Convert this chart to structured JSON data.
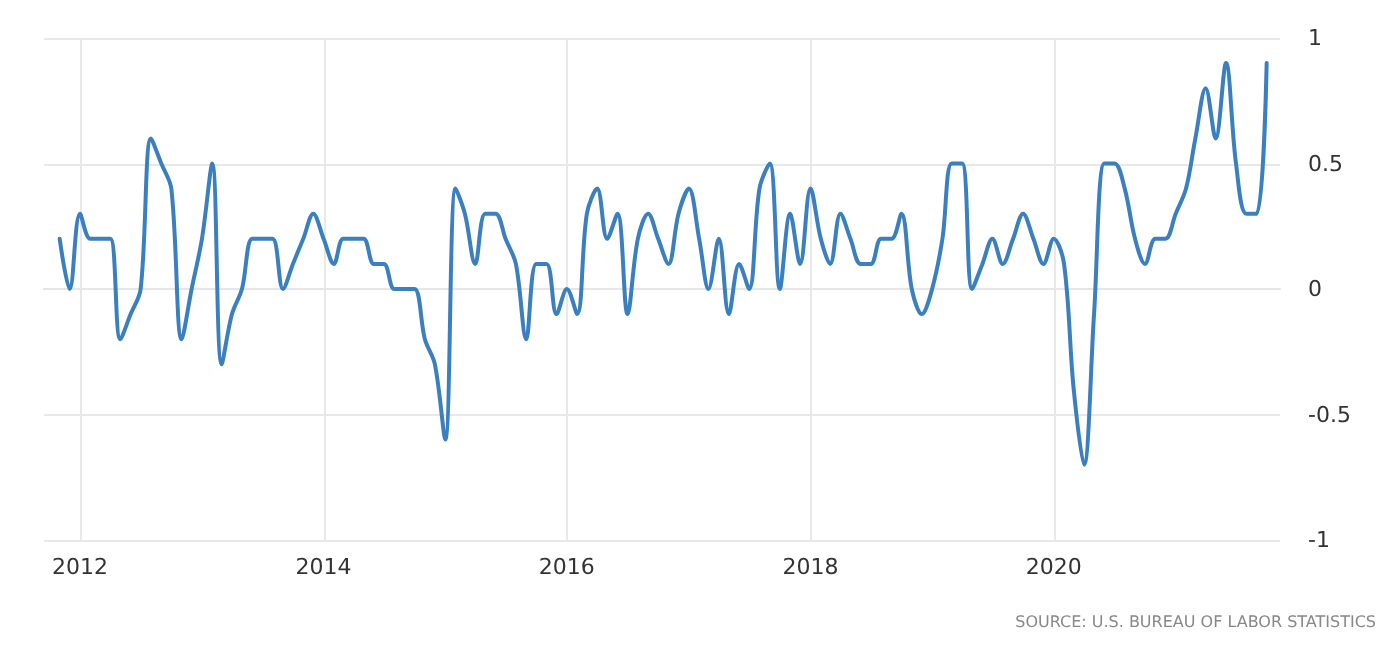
{
  "chart_data": {
    "type": "line",
    "x": [
      "2011-11",
      "2011-12",
      "2012-01",
      "2012-02",
      "2012-03",
      "2012-04",
      "2012-05",
      "2012-06",
      "2012-07",
      "2012-08",
      "2012-09",
      "2012-10",
      "2012-11",
      "2012-12",
      "2013-01",
      "2013-02",
      "2013-03",
      "2013-04",
      "2013-05",
      "2013-06",
      "2013-07",
      "2013-08",
      "2013-09",
      "2013-10",
      "2013-11",
      "2013-12",
      "2014-01",
      "2014-02",
      "2014-03",
      "2014-04",
      "2014-05",
      "2014-06",
      "2014-07",
      "2014-08",
      "2014-09",
      "2014-10",
      "2014-11",
      "2014-12",
      "2015-01",
      "2015-02",
      "2015-03",
      "2015-04",
      "2015-05",
      "2015-06",
      "2015-07",
      "2015-08",
      "2015-09",
      "2015-10",
      "2015-11",
      "2015-12",
      "2016-01",
      "2016-02",
      "2016-03",
      "2016-04",
      "2016-05",
      "2016-06",
      "2016-07",
      "2016-08",
      "2016-09",
      "2016-10",
      "2016-11",
      "2016-12",
      "2017-01",
      "2017-02",
      "2017-03",
      "2017-04",
      "2017-05",
      "2017-06",
      "2017-07",
      "2017-08",
      "2017-09",
      "2017-10",
      "2017-11",
      "2017-12",
      "2018-01",
      "2018-02",
      "2018-03",
      "2018-04",
      "2018-05",
      "2018-06",
      "2018-07",
      "2018-08",
      "2018-09",
      "2018-10",
      "2018-11",
      "2018-12",
      "2019-01",
      "2019-02",
      "2019-03",
      "2019-04",
      "2019-05",
      "2019-06",
      "2019-07",
      "2019-08",
      "2019-09",
      "2019-10",
      "2019-11",
      "2019-12",
      "2020-01",
      "2020-02",
      "2020-03",
      "2020-04",
      "2020-05",
      "2020-06",
      "2020-07",
      "2020-08",
      "2020-09",
      "2020-10",
      "2020-11",
      "2020-12",
      "2021-01",
      "2021-02",
      "2021-03",
      "2021-04",
      "2021-05",
      "2021-06",
      "2021-07",
      "2021-08",
      "2021-09",
      "2021-10"
    ],
    "series": [
      {
        "color": "#3a7fc0",
        "values": [
          0.2,
          0.0,
          0.3,
          0.2,
          0.2,
          0.2,
          -0.2,
          -0.1,
          0.0,
          0.6,
          0.5,
          0.4,
          -0.2,
          0.0,
          0.2,
          0.5,
          -0.3,
          -0.1,
          0.0,
          0.2,
          0.2,
          0.2,
          0.0,
          0.1,
          0.2,
          0.3,
          0.2,
          0.1,
          0.2,
          0.2,
          0.2,
          0.1,
          0.1,
          0.0,
          0.0,
          0.0,
          -0.2,
          -0.3,
          -0.6,
          0.4,
          0.3,
          0.1,
          0.3,
          0.3,
          0.2,
          0.1,
          -0.2,
          0.1,
          0.1,
          -0.1,
          0.0,
          -0.1,
          0.3,
          0.4,
          0.2,
          0.3,
          -0.1,
          0.2,
          0.3,
          0.2,
          0.1,
          0.3,
          0.4,
          0.2,
          0.0,
          0.2,
          -0.1,
          0.1,
          0.0,
          0.4,
          0.5,
          0.0,
          0.3,
          0.1,
          0.4,
          0.2,
          0.1,
          0.3,
          0.2,
          0.1,
          0.1,
          0.2,
          0.2,
          0.3,
          0.0,
          -0.1,
          0.0,
          0.2,
          0.5,
          0.5,
          0.0,
          0.1,
          0.2,
          0.1,
          0.2,
          0.3,
          0.2,
          0.1,
          0.2,
          0.1,
          -0.4,
          -0.7,
          -0.1,
          0.5,
          0.5,
          0.4,
          0.2,
          0.1,
          0.2,
          0.2,
          0.3,
          0.4,
          0.6,
          0.8,
          0.6,
          0.9,
          0.5,
          0.3,
          0.3,
          0.9
        ]
      }
    ],
    "xlim": [
      "2011-09-15",
      "2021-11-10"
    ],
    "xticks": [
      "2012",
      "2014",
      "2016",
      "2018",
      "2020"
    ],
    "ylim": [
      -1,
      1
    ],
    "yticks": [
      -1,
      -0.5,
      0,
      0.5,
      1
    ],
    "grid": true,
    "marker": "none",
    "line_style": "solid",
    "annotations": [
      "SOURCE: U.S. BUREAU OF LABOR STATISTICS"
    ]
  }
}
